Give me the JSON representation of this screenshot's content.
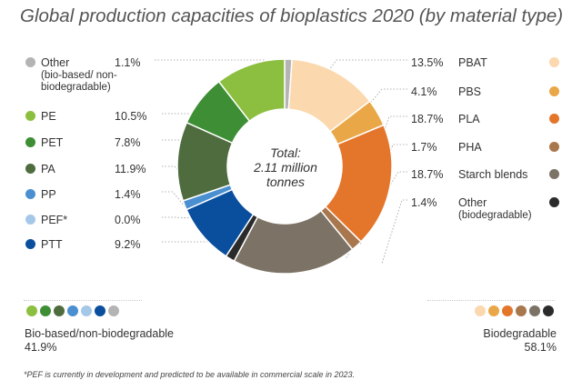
{
  "title": "Global production capacities of bioplastics 2020 (by material type)",
  "center_label": {
    "line1": "Total:",
    "line2": "2.11 million",
    "line3": "tonnes"
  },
  "groups": {
    "bio_based": {
      "label": "Bio-based/non-biodegradable",
      "percent": "41.9%"
    },
    "biodegradable": {
      "label": "Biodegradable",
      "percent": "58.1%"
    }
  },
  "footnote": "*PEF is currently in development and predicted to be available in commercial scale in 2023.",
  "chart_data": {
    "type": "pie",
    "title": "Global production capacities of bioplastics 2020 (by material type)",
    "total": "2.11 million tonnes",
    "donut": true,
    "start_angle_deg": -90,
    "direction": "clockwise",
    "slices": [
      {
        "name": "Other",
        "sub": "(bio-based/ non-biodegradable)",
        "value": 1.1,
        "label": "1.1%",
        "color": "#b4b4b4",
        "group": "bio_based"
      },
      {
        "name": "PBAT",
        "sub": "",
        "value": 13.5,
        "label": "13.5%",
        "color": "#fbd8ae",
        "group": "biodegradable"
      },
      {
        "name": "PBS",
        "sub": "",
        "value": 4.1,
        "label": "4.1%",
        "color": "#eaa747",
        "group": "biodegradable"
      },
      {
        "name": "PLA",
        "sub": "",
        "value": 18.7,
        "label": "18.7%",
        "color": "#e4762b",
        "group": "biodegradable"
      },
      {
        "name": "PHA",
        "sub": "",
        "value": 1.7,
        "label": "1.7%",
        "color": "#a9774e",
        "group": "biodegradable"
      },
      {
        "name": "Starch blends",
        "sub": "",
        "value": 18.7,
        "label": "18.7%",
        "color": "#7c7366",
        "group": "biodegradable"
      },
      {
        "name": "Other",
        "sub": "(biodegradable)",
        "value": 1.4,
        "label": "1.4%",
        "color": "#2b2b2b",
        "group": "biodegradable"
      },
      {
        "name": "PTT",
        "sub": "",
        "value": 9.2,
        "label": "9.2%",
        "color": "#0a4f9e",
        "group": "bio_based"
      },
      {
        "name": "PEF*",
        "sub": "",
        "value": 0.0,
        "label": "0.0%",
        "color": "#a6c8e8",
        "group": "bio_based"
      },
      {
        "name": "PP",
        "sub": "",
        "value": 1.4,
        "label": "1.4%",
        "color": "#4a90d0",
        "group": "bio_based"
      },
      {
        "name": "PA",
        "sub": "",
        "value": 11.9,
        "label": "11.9%",
        "color": "#4e6c3e",
        "group": "bio_based"
      },
      {
        "name": "PET",
        "sub": "",
        "value": 7.8,
        "label": "7.8%",
        "color": "#3e8e35",
        "group": "bio_based"
      },
      {
        "name": "PE",
        "sub": "",
        "value": 10.5,
        "label": "10.5%",
        "color": "#8cbf3f",
        "group": "bio_based"
      }
    ]
  }
}
